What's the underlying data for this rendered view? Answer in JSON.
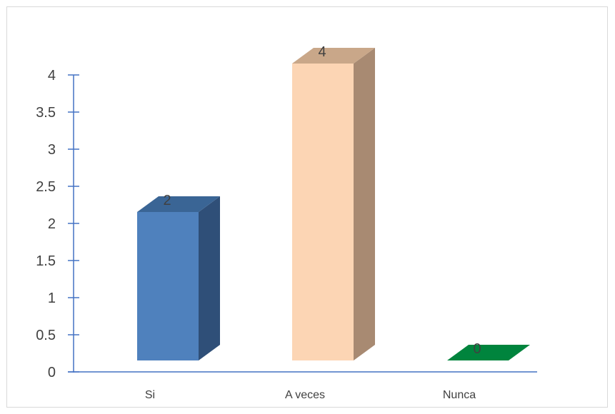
{
  "chart_data": {
    "type": "bar",
    "style": "3d-column",
    "categories": [
      "Si",
      "A veces",
      "Nunca"
    ],
    "values": [
      2,
      4,
      0
    ],
    "data_labels": [
      "2",
      "4",
      "0"
    ],
    "ylim": [
      0,
      4
    ],
    "yticks": [
      "0",
      "0.5",
      "1",
      "1.5",
      "2",
      "2.5",
      "3",
      "3.5",
      "4"
    ],
    "title": "",
    "xlabel": "",
    "ylabel": "",
    "grid": false,
    "legend": "none",
    "colors": {
      "Si": {
        "front": "#4f81bd",
        "top": "#3a6595",
        "side": "#2f4f78"
      },
      "A veces": {
        "front": "#fcd5b4",
        "top": "#c9a789",
        "side": "#a88a72"
      },
      "Nunca": {
        "front": "#1f8c4a",
        "top": "#00843d",
        "side": "#006b30"
      }
    },
    "axis_color": "#4472c4"
  }
}
